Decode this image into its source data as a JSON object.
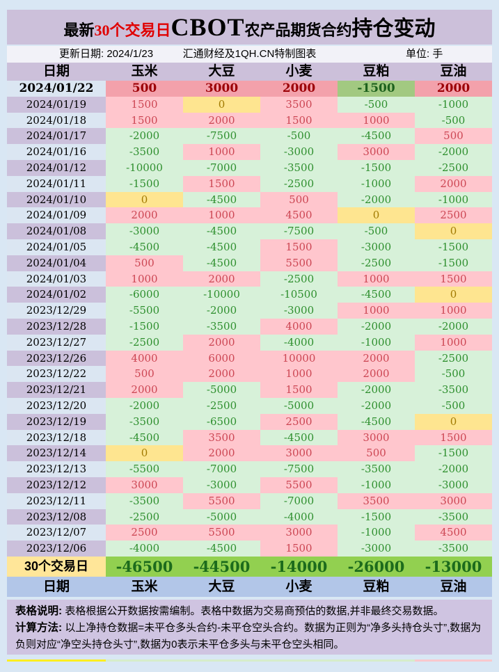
{
  "title": {
    "prefix": "最新",
    "highlight": "30个交易日",
    "brand": "CBOT",
    "middle": "农产品期货合约",
    "suffix": "持仓变动"
  },
  "meta": {
    "update_date": "更新日期: 2024/1/23",
    "source": "汇通财经及1QH.CN特制图表",
    "unit": "单位: 手"
  },
  "notes": {
    "line1_label": "表格说明:",
    "line1_text": "表格根据公开数据按需编制。表格中数据为交易商预估的数据,并非最终交易数据。",
    "line2_label": "计算方法:",
    "line2_text": "以上净持仓数据=未平仓多头合约-未平仓空头合约。数据为正则为“净多头持仓头寸”,数据为负则对应“净空头持仓头寸”,数据为0表示未平仓多头与未平仓空头相同。"
  },
  "colors": {
    "page_bg": "#d9e7f4",
    "panel_purple": "#ccc0da",
    "positive_fill": "#ffc6cd",
    "positive_text": "#cc4653",
    "negative_fill": "#d7f1d9",
    "negative_text": "#2e8f2e",
    "zero_fill": "#fee590",
    "zero_text": "#a17a00",
    "summary_fill": "#92d050",
    "summary_label_fill": "#ffe699",
    "footer_header_fill": "#b2c6e8",
    "title_highlight": "#e00000"
  },
  "chart_data": {
    "type": "table",
    "title": "最新30个交易日CBOT农产品期货合约持仓变动",
    "unit": "手",
    "columns": [
      "日期",
      "玉米",
      "大豆",
      "小麦",
      "豆粕",
      "豆油"
    ],
    "color_coding": {
      "positive": "pink",
      "negative": "green",
      "zero": "yellow"
    },
    "rows": [
      {
        "date": "2024/01/22",
        "values": [
          500,
          3000,
          2000,
          -1500,
          2000
        ]
      },
      {
        "date": "2024/01/19",
        "values": [
          1500,
          0,
          3500,
          -500,
          -1000
        ]
      },
      {
        "date": "2024/01/18",
        "values": [
          1500,
          2000,
          1500,
          1000,
          -500
        ]
      },
      {
        "date": "2024/01/17",
        "values": [
          -2000,
          -7500,
          -500,
          -4500,
          500
        ]
      },
      {
        "date": "2024/01/16",
        "values": [
          -3500,
          1000,
          -3000,
          3000,
          -2000
        ]
      },
      {
        "date": "2024/01/12",
        "values": [
          -10000,
          -7000,
          -3500,
          -1500,
          -2500
        ]
      },
      {
        "date": "2024/01/11",
        "values": [
          -1500,
          1500,
          -2500,
          -1000,
          2000
        ]
      },
      {
        "date": "2024/01/10",
        "values": [
          0,
          -4500,
          500,
          -2000,
          -1000
        ]
      },
      {
        "date": "2024/01/09",
        "values": [
          2000,
          1000,
          4500,
          0,
          2500
        ]
      },
      {
        "date": "2024/01/08",
        "values": [
          -3000,
          -4500,
          -7500,
          -500,
          0
        ]
      },
      {
        "date": "2024/01/05",
        "values": [
          -4500,
          -4500,
          1500,
          -3000,
          -1500
        ]
      },
      {
        "date": "2024/01/04",
        "values": [
          500,
          -4500,
          5500,
          -2500,
          -1500
        ]
      },
      {
        "date": "2024/01/03",
        "values": [
          1000,
          2000,
          -2500,
          1000,
          1500
        ]
      },
      {
        "date": "2024/01/02",
        "values": [
          -6000,
          -10000,
          -10500,
          -4500,
          0
        ]
      },
      {
        "date": "2023/12/29",
        "values": [
          -5500,
          -2000,
          -3000,
          1000,
          1000
        ]
      },
      {
        "date": "2023/12/28",
        "values": [
          -1500,
          -3500,
          4000,
          -2000,
          -2000
        ]
      },
      {
        "date": "2023/12/27",
        "values": [
          -2500,
          2000,
          -4000,
          -1000,
          1000
        ]
      },
      {
        "date": "2023/12/26",
        "values": [
          4000,
          6000,
          10000,
          2000,
          -2500
        ]
      },
      {
        "date": "2023/12/22",
        "values": [
          500,
          2000,
          1000,
          2000,
          -500
        ]
      },
      {
        "date": "2023/12/21",
        "values": [
          2000,
          -5000,
          1500,
          -2000,
          -3500
        ]
      },
      {
        "date": "2023/12/20",
        "values": [
          -2000,
          -2500,
          -5000,
          -2000,
          -500
        ]
      },
      {
        "date": "2023/12/19",
        "values": [
          -3500,
          -6500,
          2500,
          -4500,
          0
        ]
      },
      {
        "date": "2023/12/18",
        "values": [
          -4500,
          3500,
          -4500,
          3000,
          1500
        ]
      },
      {
        "date": "2023/12/14",
        "values": [
          0,
          2000,
          3000,
          500,
          -1500
        ]
      },
      {
        "date": "2023/12/13",
        "values": [
          -5500,
          -7000,
          -7500,
          -3500,
          -2000
        ]
      },
      {
        "date": "2023/12/12",
        "values": [
          3000,
          -3000,
          5500,
          -1000,
          -3000
        ]
      },
      {
        "date": "2023/12/11",
        "values": [
          -3500,
          5500,
          -7000,
          3500,
          3000
        ]
      },
      {
        "date": "2023/12/08",
        "values": [
          -2500,
          -5000,
          -4000,
          -1500,
          -3500
        ]
      },
      {
        "date": "2023/12/07",
        "values": [
          2500,
          5500,
          3000,
          -1000,
          4500
        ]
      },
      {
        "date": "2023/12/06",
        "values": [
          -4000,
          -4500,
          1500,
          -3000,
          -3500
        ]
      }
    ],
    "summary": {
      "label": "30个交易日",
      "values": [
        -46500,
        -44500,
        -14000,
        -26000,
        -13000
      ]
    }
  }
}
